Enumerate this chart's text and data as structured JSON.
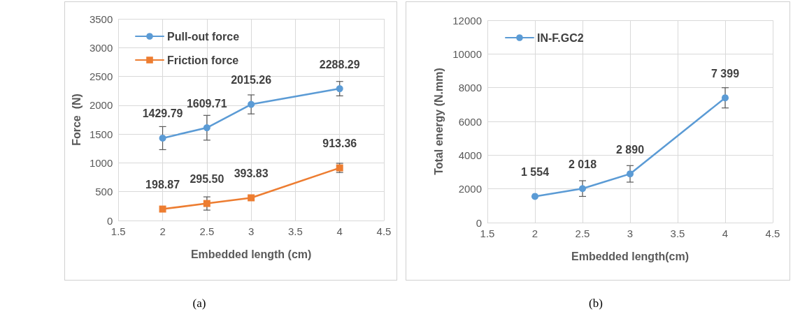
{
  "chart_data": [
    {
      "type": "line",
      "xlabel": "Embedded length (cm)",
      "ylabel": "Force  (N)",
      "xlim": [
        1.5,
        4.5
      ],
      "xticks": [
        1.5,
        2,
        2.5,
        3,
        3.5,
        4,
        4.5
      ],
      "ylim": [
        0,
        3500
      ],
      "yticks": [
        0,
        500,
        1000,
        1500,
        2000,
        2500,
        3000,
        3500
      ],
      "grid": true,
      "legend": "top left",
      "annotations": [
        "(a)"
      ],
      "series": [
        {
          "name": "Pull-out force",
          "color": "#5b9bd5",
          "marker": "circle",
          "x": [
            2,
            2.5,
            3,
            4
          ],
          "values": [
            1429.79,
            1609.71,
            2015.26,
            2288.29
          ],
          "errors": [
            200,
            215,
            165,
            125
          ],
          "value_labels": [
            "1429.79",
            "1609.71",
            "2015.26",
            "2288.29"
          ]
        },
        {
          "name": "Friction force",
          "color": "#ed7d31",
          "marker": "square",
          "x": [
            2,
            2.5,
            3,
            4
          ],
          "values": [
            198.87,
            295.5,
            393.83,
            913.36
          ],
          "errors": [
            null,
            115,
            null,
            80
          ],
          "value_labels": [
            "198.87",
            "295.50",
            "393.83",
            "913.36"
          ]
        }
      ]
    },
    {
      "type": "line",
      "xlabel": "Embedded length(cm)",
      "ylabel": "Total energy (N.mm)",
      "xlim": [
        1.5,
        4.5
      ],
      "xticks": [
        1.5,
        2,
        2.5,
        3,
        3.5,
        4,
        4.5
      ],
      "ylim": [
        0,
        12000
      ],
      "yticks": [
        0,
        2000,
        4000,
        6000,
        8000,
        10000,
        12000
      ],
      "grid": true,
      "legend": "top left",
      "annotations": [
        "(b)"
      ],
      "series": [
        {
          "name": "IN-F.GC2",
          "color": "#5b9bd5",
          "marker": "circle",
          "x": [
            2,
            2.5,
            3,
            4
          ],
          "values": [
            1554,
            2018,
            2890,
            7399
          ],
          "errors": [
            null,
            465,
            490,
            600
          ],
          "value_labels": [
            "1 554",
            "2 018",
            "2 890",
            "7 399"
          ]
        }
      ]
    }
  ]
}
